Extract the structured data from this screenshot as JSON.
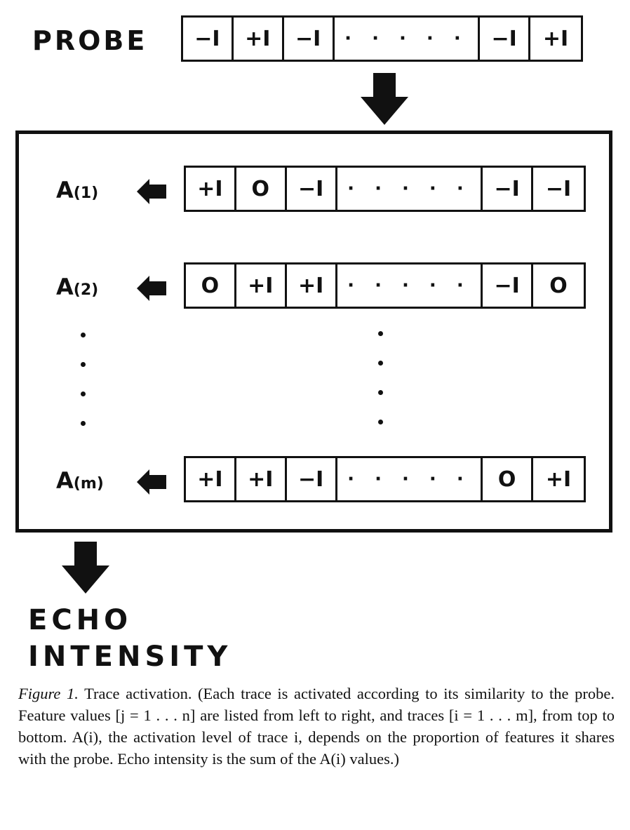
{
  "probe": {
    "label": "PROBE",
    "cells": [
      "−I",
      "+I",
      "−I",
      "· · · · ·",
      "−I",
      "+I"
    ]
  },
  "traces": [
    {
      "label": "A",
      "index": "(1)",
      "cells": [
        "+I",
        "O",
        "−I",
        "· · · · ·",
        "−I",
        "−I"
      ]
    },
    {
      "label": "A",
      "index": "(2)",
      "cells": [
        "O",
        "+I",
        "+I",
        "· · · · ·",
        "−I",
        "O"
      ]
    },
    {
      "label": "A",
      "index": "(m)",
      "cells": [
        "+I",
        "+I",
        "−I",
        "· · · · ·",
        "O",
        "+I"
      ]
    }
  ],
  "echo": {
    "line1": "ECHO",
    "line2": "INTENSITY"
  },
  "caption": {
    "figure_label": "Figure 1.",
    "text": "Trace activation. (Each trace is activated according to its similarity to the probe. Feature values [j = 1 . . . n] are listed from left to right, and traces [i = 1 . . . m], from top to bottom. A(i), the activation level of trace i, depends on the proportion of features it shares with the probe. Echo intensity is the sum of the A(i) values.)"
  },
  "colors": {
    "ink": "#111111",
    "background": "#ffffff"
  }
}
